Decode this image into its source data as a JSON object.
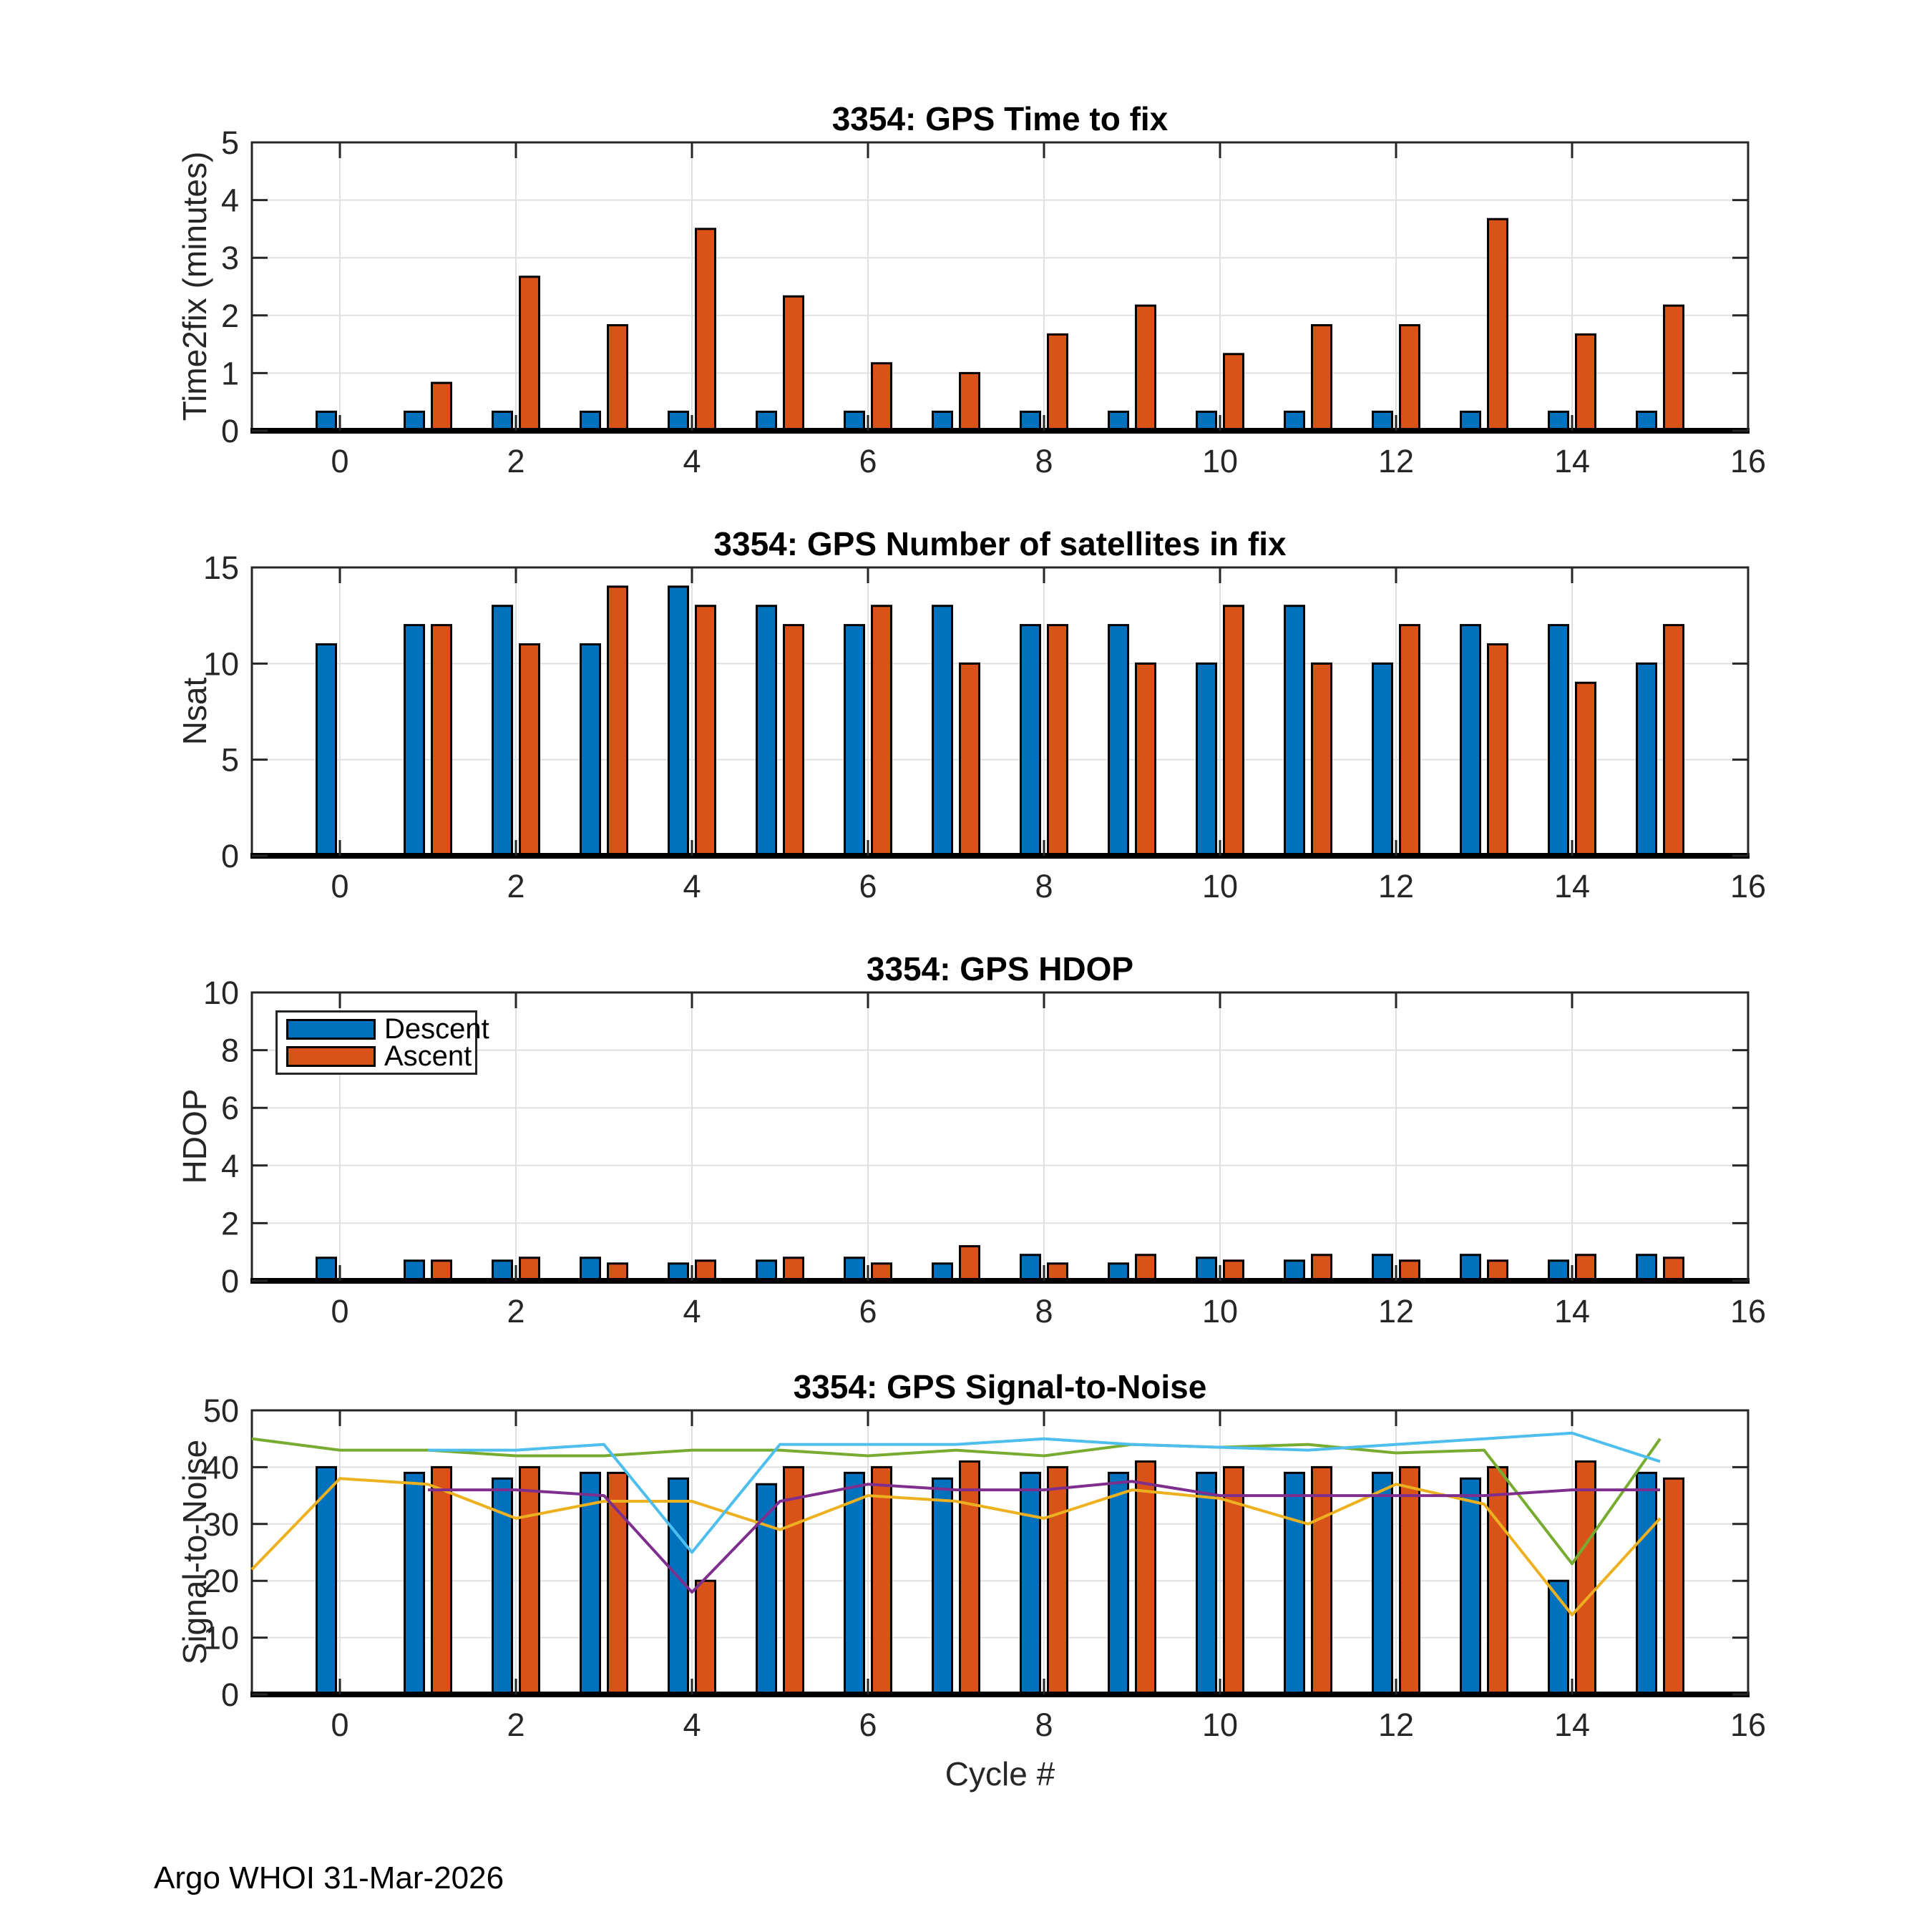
{
  "figure": {
    "footer": "Argo WHOI 31-Mar-2026",
    "xlabel": "Cycle #",
    "colors": {
      "descent": "#0072BD",
      "ascent": "#D95319",
      "axis": "#262626",
      "baseline": "#000000",
      "grid": "#E0E0E0",
      "text": "#262626"
    }
  },
  "legend": {
    "items": [
      "Descent",
      "Ascent"
    ]
  },
  "chart_data": [
    {
      "id": "time2fix",
      "type": "bar",
      "title": "3354: GPS Time to fix",
      "ylabel": "Time2fix (minutes)",
      "xlabel": "",
      "grid": true,
      "xlim": [
        -1,
        16
      ],
      "ylim": [
        0,
        5
      ],
      "xticks": [
        0,
        2,
        4,
        6,
        8,
        10,
        12,
        14,
        16
      ],
      "yticks": [
        0,
        1,
        2,
        3,
        4,
        5
      ],
      "categories": [
        0,
        1,
        2,
        3,
        4,
        5,
        6,
        7,
        8,
        9,
        10,
        11,
        12,
        13,
        14,
        15
      ],
      "series": [
        {
          "name": "Descent",
          "color": "#0072BD",
          "values": [
            0.33,
            0.33,
            0.33,
            0.33,
            0.33,
            0.33,
            0.33,
            0.33,
            0.33,
            0.33,
            0.33,
            0.33,
            0.33,
            0.33,
            0.33,
            0.33
          ]
        },
        {
          "name": "Ascent",
          "color": "#D95319",
          "values": [
            0,
            0.83,
            2.67,
            1.83,
            3.5,
            2.33,
            1.17,
            1.0,
            1.67,
            2.17,
            1.33,
            1.83,
            1.83,
            3.67,
            1.67,
            2.17
          ]
        }
      ]
    },
    {
      "id": "nsat",
      "type": "bar",
      "title": "3354: GPS Number of satellites in fix",
      "ylabel": "Nsat",
      "xlabel": "",
      "grid": true,
      "xlim": [
        -1,
        16
      ],
      "ylim": [
        0,
        15
      ],
      "xticks": [
        0,
        2,
        4,
        6,
        8,
        10,
        12,
        14,
        16
      ],
      "yticks": [
        0,
        5,
        10,
        15
      ],
      "categories": [
        0,
        1,
        2,
        3,
        4,
        5,
        6,
        7,
        8,
        9,
        10,
        11,
        12,
        13,
        14,
        15
      ],
      "series": [
        {
          "name": "Descent",
          "color": "#0072BD",
          "values": [
            11,
            12,
            13,
            11,
            14,
            13,
            12,
            13,
            12,
            12,
            10,
            13,
            10,
            12,
            12,
            10
          ]
        },
        {
          "name": "Ascent",
          "color": "#D95319",
          "values": [
            0,
            12,
            11,
            14,
            13,
            12,
            13,
            10,
            12,
            10,
            13,
            10,
            12,
            11,
            9,
            12
          ]
        }
      ]
    },
    {
      "id": "hdop",
      "type": "bar",
      "title": "3354: GPS HDOP",
      "ylabel": "HDOP",
      "xlabel": "",
      "grid": true,
      "legend_position": "northwest",
      "xlim": [
        -1,
        16
      ],
      "ylim": [
        0,
        10
      ],
      "xticks": [
        0,
        2,
        4,
        6,
        8,
        10,
        12,
        14,
        16
      ],
      "yticks": [
        0,
        2,
        4,
        6,
        8,
        10
      ],
      "categories": [
        0,
        1,
        2,
        3,
        4,
        5,
        6,
        7,
        8,
        9,
        10,
        11,
        12,
        13,
        14,
        15
      ],
      "series": [
        {
          "name": "Descent",
          "color": "#0072BD",
          "values": [
            0.8,
            0.7,
            0.7,
            0.8,
            0.6,
            0.7,
            0.8,
            0.6,
            0.9,
            0.6,
            0.8,
            0.7,
            0.9,
            0.9,
            0.7,
            0.9
          ]
        },
        {
          "name": "Ascent",
          "color": "#D95319",
          "values": [
            0,
            0.7,
            0.8,
            0.6,
            0.7,
            0.8,
            0.6,
            1.2,
            0.6,
            0.9,
            0.7,
            0.9,
            0.7,
            0.7,
            0.9,
            0.8
          ]
        }
      ]
    },
    {
      "id": "snr",
      "type": "bar+line",
      "title": "3354: GPS Signal-to-Noise",
      "ylabel": "Signal-to-Noise",
      "xlabel": "Cycle #",
      "grid": true,
      "xlim": [
        -1,
        16
      ],
      "ylim": [
        0,
        50
      ],
      "xticks": [
        0,
        2,
        4,
        6,
        8,
        10,
        12,
        14,
        16
      ],
      "yticks": [
        0,
        10,
        20,
        30,
        40,
        50
      ],
      "categories": [
        0,
        1,
        2,
        3,
        4,
        5,
        6,
        7,
        8,
        9,
        10,
        11,
        12,
        13,
        14,
        15
      ],
      "series": [
        {
          "name": "Descent",
          "color": "#0072BD",
          "values": [
            40,
            39,
            38,
            39,
            38,
            37,
            39,
            38,
            39,
            39,
            39,
            39,
            39,
            38,
            20,
            39
          ]
        },
        {
          "name": "Ascent",
          "color": "#D95319",
          "values": [
            0,
            40,
            40,
            39,
            20,
            40,
            40,
            41,
            40,
            41,
            40,
            40,
            40,
            40,
            41,
            38
          ]
        }
      ],
      "lines": [
        {
          "name": "snr-line-green",
          "color": "#77AC30",
          "x": [
            -1,
            0,
            1,
            2,
            3,
            4,
            5,
            6,
            7,
            8,
            9,
            10,
            11,
            12,
            13,
            14,
            15
          ],
          "y": [
            45,
            43,
            43,
            42,
            42,
            43,
            43,
            42,
            43,
            42,
            44,
            43.5,
            44,
            42.5,
            43,
            23,
            45
          ]
        },
        {
          "name": "snr-line-yellow",
          "color": "#EDB120",
          "x": [
            -1,
            0,
            1,
            2,
            3,
            4,
            5,
            6,
            7,
            8,
            9,
            10,
            11,
            12,
            13,
            14,
            15
          ],
          "y": [
            22,
            38,
            37,
            31,
            34,
            34,
            29,
            35,
            34,
            31,
            36,
            34.5,
            30,
            37,
            33.5,
            14,
            31
          ]
        },
        {
          "name": "snr-line-cyan",
          "color": "#4DBEEE",
          "x": [
            1,
            2,
            3,
            4,
            5,
            6,
            7,
            8,
            9,
            10,
            11,
            12,
            13,
            14,
            15
          ],
          "y": [
            43,
            43,
            44,
            25,
            44,
            44,
            44,
            45,
            44,
            43.5,
            43,
            44,
            45,
            46,
            41
          ]
        },
        {
          "name": "snr-line-purple",
          "color": "#7E2F8E",
          "x": [
            1,
            2,
            3,
            4,
            5,
            6,
            7,
            8,
            9,
            10,
            11,
            12,
            13,
            14,
            15
          ],
          "y": [
            36,
            36,
            35,
            18,
            34,
            37,
            36,
            36,
            37.5,
            35,
            35,
            35,
            35,
            36,
            36
          ]
        }
      ]
    }
  ]
}
